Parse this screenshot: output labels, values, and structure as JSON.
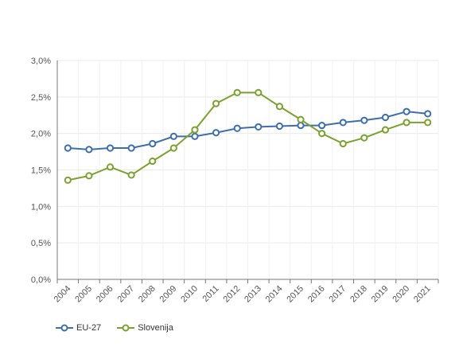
{
  "chart_data": {
    "type": "line",
    "categories": [
      "2004",
      "2005",
      "2006",
      "2007",
      "2008",
      "2009",
      "2010",
      "2011",
      "2012",
      "2013",
      "2014",
      "2015",
      "2016",
      "2017",
      "2018",
      "2019",
      "2020",
      "2021"
    ],
    "series": [
      {
        "name": "EU-27",
        "color": "#3f6eaf",
        "values": [
          1.8,
          1.78,
          1.8,
          1.8,
          1.86,
          1.96,
          1.96,
          2.01,
          2.07,
          2.09,
          2.1,
          2.11,
          2.11,
          2.15,
          2.18,
          2.22,
          2.3,
          2.27
        ]
      },
      {
        "name": "Slovenija",
        "color": "#7ba230",
        "values": [
          1.36,
          1.42,
          1.54,
          1.43,
          1.62,
          1.8,
          2.05,
          2.41,
          2.56,
          2.56,
          2.37,
          2.19,
          2.0,
          1.86,
          1.94,
          2.05,
          2.15,
          2.15
        ]
      }
    ],
    "ylim": [
      0,
      3.0
    ],
    "yticks": [
      0.0,
      0.5,
      1.0,
      1.5,
      2.0,
      2.5,
      3.0
    ],
    "ytick_labels": [
      "0,0%",
      "0,5%",
      "1,0%",
      "1,5%",
      "2,0%",
      "2,5%",
      "3,0%"
    ],
    "grid": true,
    "legend_position": "bottom-left",
    "xlabel": "",
    "ylabel": "",
    "title": ""
  }
}
